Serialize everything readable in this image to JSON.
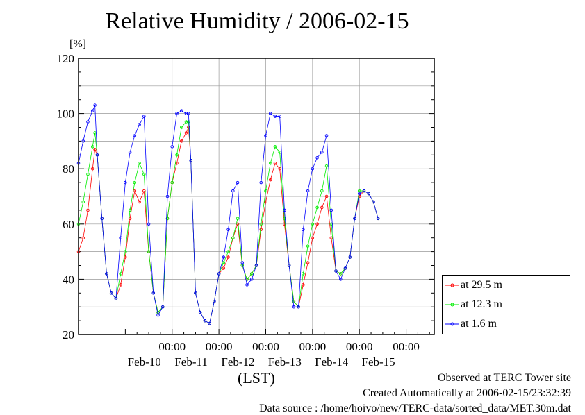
{
  "title": "Relative Humidity / 2006-02-15",
  "unit_label": "[%]",
  "x_axis_label": "(LST)",
  "footer": {
    "line1": "Observed at TERC Tower site",
    "line2": "Created Automatically at 2006-02-15/23:32:39",
    "line3": "Data source : /home/hoivo/new/TERC-data/sorted_data/MET.30m.dat"
  },
  "colors": {
    "red": "#ff0000",
    "green": "#00ee00",
    "blue": "#0000ff"
  },
  "chart_data": {
    "type": "line",
    "title": "Relative Humidity / 2006-02-15",
    "ylabel": "[%]",
    "xlabel": "(LST)",
    "ylim": [
      20,
      120
    ],
    "xlim": [
      0,
      6
    ],
    "y_ticks": [
      "20",
      "40",
      "60",
      "80",
      "100",
      "120"
    ],
    "x_ticks": [
      {
        "pos": 1,
        "time": "00:00",
        "date": "Feb-10"
      },
      {
        "pos": 2,
        "time": "00:00",
        "date": "Feb-11"
      },
      {
        "pos": 3,
        "time": "00:00",
        "date": "Feb-12"
      },
      {
        "pos": 4,
        "time": "00:00",
        "date": "Feb-13"
      },
      {
        "pos": 5,
        "time": "00:00",
        "date": "Feb-14"
      },
      {
        "pos": 6,
        "time": "00:00",
        "date": "Feb-15"
      }
    ],
    "grid": true,
    "legend_position": "right",
    "series": [
      {
        "name": "at 29.5 m",
        "color": "#ff0000",
        "x": [
          0.0,
          0.1,
          0.2,
          0.3,
          0.35,
          0.4,
          0.5,
          0.6,
          0.7,
          0.8,
          0.9,
          1.0,
          1.1,
          1.2,
          1.3,
          1.4,
          1.5,
          1.6,
          1.7,
          1.8,
          1.9,
          2.0,
          2.1,
          2.2,
          2.3,
          2.35,
          2.4,
          2.5,
          2.6,
          2.7,
          2.8,
          2.9,
          3.0,
          3.1,
          3.2,
          3.3,
          3.4,
          3.5,
          3.6,
          3.7,
          3.8,
          3.9,
          4.0,
          4.1,
          4.2,
          4.3,
          4.4,
          4.5,
          4.6,
          4.7,
          4.8,
          4.9,
          5.0,
          5.1,
          5.2,
          5.3,
          5.4,
          5.5,
          5.6,
          5.7,
          5.8,
          5.9,
          6.0,
          6.1,
          6.2,
          6.3,
          6.4
        ],
        "y": [
          50,
          55,
          65,
          80,
          87,
          85,
          62,
          42,
          35,
          33,
          38,
          48,
          62,
          72,
          68,
          72,
          50,
          35,
          28,
          30,
          62,
          75,
          82,
          90,
          93,
          95,
          83,
          35,
          28,
          25,
          24,
          32,
          42,
          44,
          48,
          55,
          60,
          45,
          40,
          42,
          45,
          58,
          68,
          76,
          82,
          80,
          60,
          45,
          32,
          30,
          38,
          46,
          55,
          60,
          66,
          70,
          55,
          43,
          42,
          44,
          48,
          62,
          70,
          72,
          71,
          68,
          62
        ]
      },
      {
        "name": "at 12.3 m",
        "color": "#00ee00",
        "x": [
          0.0,
          0.1,
          0.2,
          0.3,
          0.35,
          0.4,
          0.5,
          0.6,
          0.7,
          0.8,
          0.9,
          1.0,
          1.1,
          1.2,
          1.3,
          1.4,
          1.5,
          1.6,
          1.7,
          1.8,
          1.9,
          2.0,
          2.1,
          2.2,
          2.3,
          2.35,
          2.4,
          2.5,
          2.6,
          2.7,
          2.8,
          2.9,
          3.0,
          3.1,
          3.2,
          3.3,
          3.4,
          3.5,
          3.6,
          3.7,
          3.8,
          3.9,
          4.0,
          4.1,
          4.2,
          4.3,
          4.4,
          4.5,
          4.6,
          4.7,
          4.8,
          4.9,
          5.0,
          5.1,
          5.2,
          5.3,
          5.4,
          5.5,
          5.6,
          5.7,
          5.8,
          5.9,
          6.0,
          6.1,
          6.2,
          6.3,
          6.4
        ],
        "y": [
          60,
          68,
          78,
          88,
          93,
          85,
          62,
          42,
          35,
          33,
          42,
          50,
          65,
          75,
          82,
          78,
          50,
          35,
          28,
          30,
          62,
          75,
          85,
          95,
          97,
          97,
          83,
          35,
          28,
          25,
          24,
          32,
          42,
          46,
          50,
          55,
          62,
          45,
          40,
          42,
          45,
          60,
          72,
          82,
          88,
          86,
          62,
          45,
          32,
          30,
          42,
          52,
          60,
          66,
          72,
          81,
          60,
          43,
          42,
          44,
          48,
          62,
          72,
          72,
          71,
          68,
          62
        ]
      },
      {
        "name": "at 1.6 m",
        "color": "#0000ff",
        "x": [
          0.0,
          0.1,
          0.2,
          0.3,
          0.35,
          0.4,
          0.5,
          0.6,
          0.7,
          0.8,
          0.9,
          1.0,
          1.1,
          1.2,
          1.3,
          1.4,
          1.5,
          1.6,
          1.7,
          1.8,
          1.9,
          2.0,
          2.1,
          2.2,
          2.3,
          2.35,
          2.4,
          2.5,
          2.6,
          2.7,
          2.8,
          2.9,
          3.0,
          3.1,
          3.2,
          3.3,
          3.4,
          3.5,
          3.6,
          3.7,
          3.8,
          3.9,
          4.0,
          4.1,
          4.2,
          4.3,
          4.4,
          4.5,
          4.6,
          4.7,
          4.8,
          4.9,
          5.0,
          5.1,
          5.2,
          5.3,
          5.4,
          5.5,
          5.6,
          5.7,
          5.8,
          5.9,
          6.0,
          6.1,
          6.2,
          6.3,
          6.4
        ],
        "y": [
          82,
          90,
          97,
          101,
          103,
          85,
          62,
          42,
          35,
          33,
          55,
          75,
          86,
          92,
          96,
          99,
          60,
          35,
          27,
          30,
          70,
          88,
          100,
          101,
          100,
          100,
          83,
          35,
          28,
          25,
          24,
          32,
          42,
          48,
          58,
          72,
          75,
          46,
          38,
          40,
          45,
          75,
          92,
          100,
          99,
          99,
          65,
          45,
          30,
          30,
          58,
          72,
          80,
          84,
          86,
          92,
          65,
          43,
          40,
          44,
          48,
          62,
          71,
          72,
          71,
          68,
          62
        ]
      }
    ]
  }
}
